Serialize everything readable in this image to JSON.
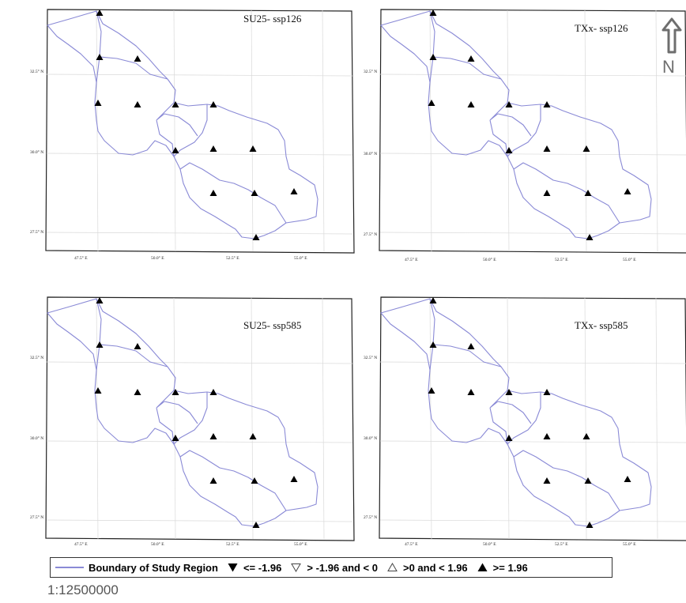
{
  "panels": [
    {
      "title": "SU25- ssp126"
    },
    {
      "title": "TXx- ssp126"
    },
    {
      "title": "SU25- ssp585"
    },
    {
      "title": "TXx- ssp585"
    }
  ],
  "axes": {
    "lat_labels": [
      "32.5° N",
      "30.0° N",
      "27.5° N"
    ],
    "lon_labels": [
      "47.5° E",
      "50.0° E",
      "52.5° E",
      "55.0° E"
    ]
  },
  "stations_per_panel": 14,
  "north_arrow": {
    "letter": "N"
  },
  "legend": {
    "boundary": "Boundary of Study Region",
    "items": [
      {
        "symbol": "filled-down-triangle",
        "label": "<= -1.96"
      },
      {
        "symbol": "hollow-down-triangle",
        "label": "> -1.96 and < 0"
      },
      {
        "symbol": "hollow-up-triangle",
        "label": ">0 and < 1.96"
      },
      {
        "symbol": "filled-up-triangle",
        "label": ">= 1.96"
      }
    ]
  },
  "scale": "1:12500000",
  "colors": {
    "boundary": "#8a8ad6",
    "station": "#000000",
    "frame": "#222222"
  }
}
